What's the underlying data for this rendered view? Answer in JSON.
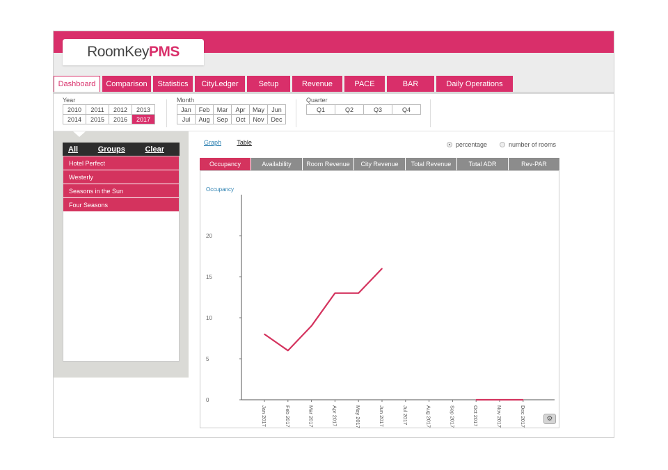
{
  "brand": {
    "name_part1": "RoomKey",
    "name_part2": "PMS"
  },
  "colors": {
    "accent": "#d92f6a",
    "tab_gray": "#8c8c8c",
    "line": "#d4335e"
  },
  "nav_tabs": [
    {
      "label": "Dashboard",
      "active": true
    },
    {
      "label": "Comparison"
    },
    {
      "label": "Statistics"
    },
    {
      "label": "CityLedger"
    },
    {
      "label": "Setup"
    },
    {
      "label": "Revenue"
    },
    {
      "label": "PACE"
    },
    {
      "label": "BAR"
    },
    {
      "label": "Daily Operations"
    }
  ],
  "filters": {
    "year": {
      "label": "Year",
      "options": [
        "2010",
        "2011",
        "2012",
        "2013",
        "2014",
        "2015",
        "2016",
        "2017"
      ],
      "selected": "2017"
    },
    "month": {
      "label": "Month",
      "options": [
        "Jan",
        "Feb",
        "Mar",
        "Apr",
        "May",
        "Jun",
        "Jul",
        "Aug",
        "Sep",
        "Oct",
        "Nov",
        "Dec"
      ]
    },
    "quarter": {
      "label": "Quarter",
      "options": [
        "Q1",
        "Q2",
        "Q3",
        "Q4"
      ]
    }
  },
  "sidebar": {
    "header": {
      "all": "All",
      "groups": "Groups",
      "clear": "Clear"
    },
    "hotels": [
      "Hotel Perfect",
      "Westerly",
      "Seasons in the Sun",
      "Four Seasons"
    ]
  },
  "view": {
    "graph": "Graph",
    "table": "Table"
  },
  "radios": {
    "percentage": "percentage",
    "rooms": "number of rooms",
    "selected": "percentage"
  },
  "metric_tabs": [
    {
      "label": "Occupancy",
      "active": true
    },
    {
      "label": "Availability"
    },
    {
      "label": "Room Revenue"
    },
    {
      "label": "City Revenue"
    },
    {
      "label": "Total Revenue"
    },
    {
      "label": "Total ADR"
    },
    {
      "label": "Rev-PAR"
    }
  ],
  "gear_icon": "gear-icon",
  "chart_data": {
    "type": "line",
    "ylabel": "Occupancy",
    "xlabel": "",
    "x": [
      "Jan 2017",
      "Feb 2017",
      "Mar 2017",
      "Apr 2017",
      "May 2017",
      "Jun 2017",
      "Jul 2017",
      "Aug 2017",
      "Sep 2017",
      "Oct 2017",
      "Nov 2017",
      "Dec 2017"
    ],
    "series": [
      {
        "values": [
          8,
          6,
          9,
          13,
          13,
          16,
          null,
          null,
          null,
          0,
          0,
          0
        ]
      }
    ],
    "y_ticks": [
      0,
      5,
      10,
      15,
      20
    ],
    "ylim": [
      0,
      25
    ],
    "grid": false,
    "legend": "none"
  }
}
